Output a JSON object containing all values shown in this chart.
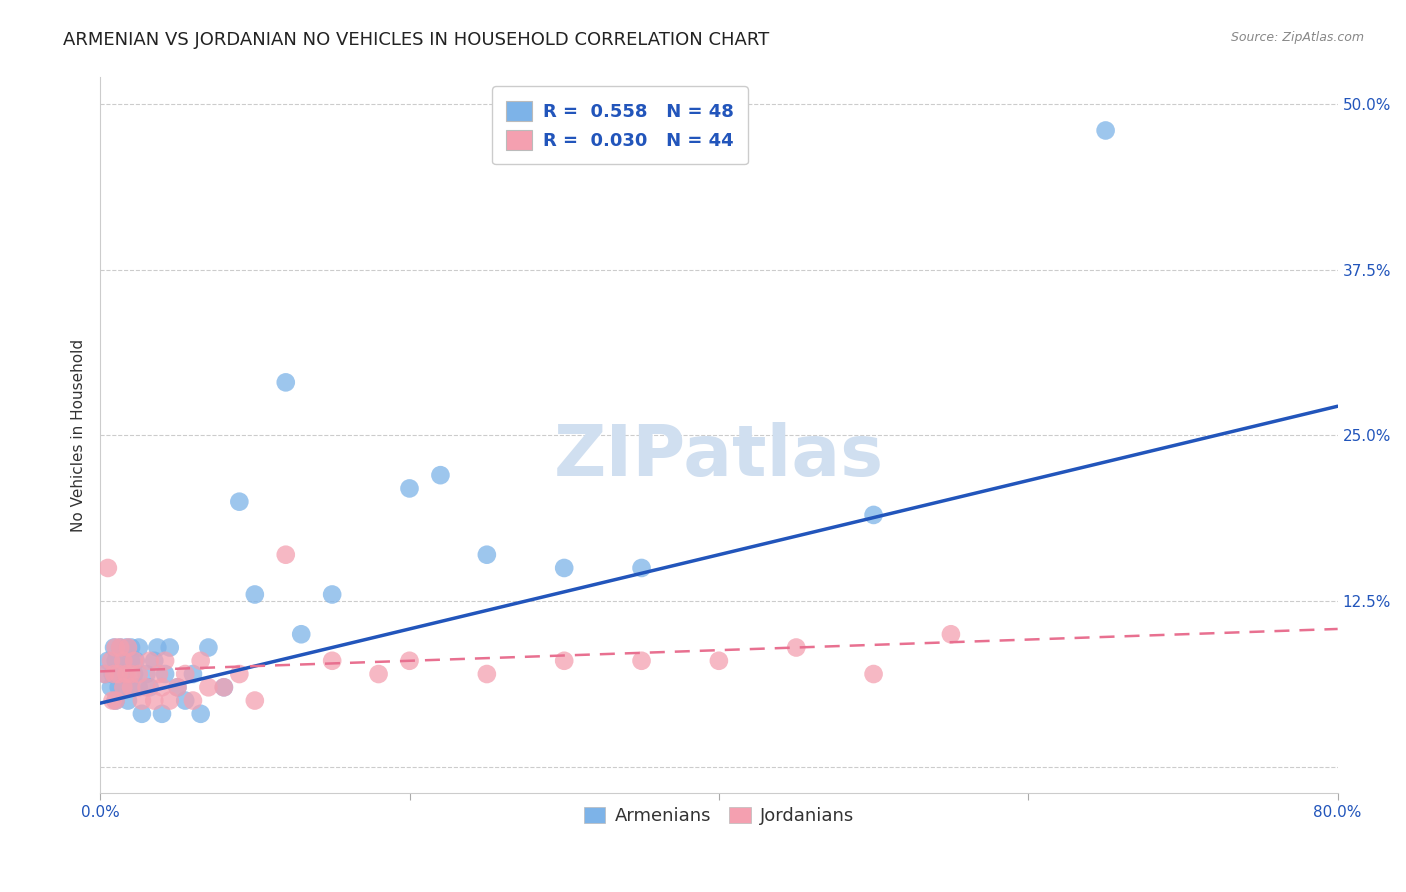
{
  "title": "ARMENIAN VS JORDANIAN NO VEHICLES IN HOUSEHOLD CORRELATION CHART",
  "source": "Source: ZipAtlas.com",
  "ylabel": "No Vehicles in Household",
  "xlim": [
    0.0,
    0.8
  ],
  "ylim": [
    -0.02,
    0.52
  ],
  "xticks": [
    0.0,
    0.2,
    0.4,
    0.6,
    0.8
  ],
  "xtick_labels": [
    "0.0%",
    "",
    "",
    "",
    "80.0%"
  ],
  "yticks": [
    0.0,
    0.125,
    0.25,
    0.375,
    0.5
  ],
  "ytick_labels": [
    "",
    "12.5%",
    "25.0%",
    "37.5%",
    "50.0%"
  ],
  "armenian_color": "#7db3e8",
  "jordanian_color": "#f4a0b0",
  "armenian_line_color": "#2255bb",
  "jordanian_line_color": "#e87090",
  "legend_armenian_label": "R =  0.558   N = 48",
  "legend_jordanian_label": "R =  0.030   N = 44",
  "bottom_legend_armenian": "Armenians",
  "bottom_legend_jordanian": "Jordanians",
  "watermark": "ZIPatlas",
  "armenian_x": [
    0.003,
    0.005,
    0.007,
    0.008,
    0.009,
    0.01,
    0.01,
    0.012,
    0.013,
    0.014,
    0.015,
    0.015,
    0.016,
    0.017,
    0.018,
    0.02,
    0.02,
    0.02,
    0.022,
    0.023,
    0.025,
    0.025,
    0.027,
    0.03,
    0.032,
    0.035,
    0.037,
    0.04,
    0.042,
    0.045,
    0.05,
    0.055,
    0.06,
    0.065,
    0.07,
    0.08,
    0.09,
    0.1,
    0.12,
    0.13,
    0.15,
    0.2,
    0.22,
    0.25,
    0.3,
    0.35,
    0.5,
    0.65
  ],
  "armenian_y": [
    0.07,
    0.08,
    0.06,
    0.07,
    0.09,
    0.05,
    0.08,
    0.06,
    0.09,
    0.07,
    0.06,
    0.08,
    0.07,
    0.09,
    0.05,
    0.06,
    0.08,
    0.09,
    0.07,
    0.08,
    0.06,
    0.09,
    0.04,
    0.07,
    0.06,
    0.08,
    0.09,
    0.04,
    0.07,
    0.09,
    0.06,
    0.05,
    0.07,
    0.04,
    0.09,
    0.06,
    0.2,
    0.13,
    0.29,
    0.1,
    0.13,
    0.21,
    0.22,
    0.16,
    0.15,
    0.15,
    0.19,
    0.48
  ],
  "jordanian_x": [
    0.003,
    0.005,
    0.007,
    0.008,
    0.009,
    0.01,
    0.01,
    0.012,
    0.013,
    0.015,
    0.015,
    0.017,
    0.018,
    0.02,
    0.02,
    0.022,
    0.025,
    0.027,
    0.03,
    0.032,
    0.035,
    0.038,
    0.04,
    0.042,
    0.045,
    0.05,
    0.055,
    0.06,
    0.065,
    0.07,
    0.08,
    0.09,
    0.1,
    0.12,
    0.15,
    0.18,
    0.2,
    0.25,
    0.3,
    0.35,
    0.4,
    0.45,
    0.5,
    0.55
  ],
  "jordanian_y": [
    0.07,
    0.15,
    0.08,
    0.05,
    0.07,
    0.05,
    0.09,
    0.07,
    0.09,
    0.06,
    0.08,
    0.07,
    0.09,
    0.06,
    0.07,
    0.08,
    0.07,
    0.05,
    0.06,
    0.08,
    0.05,
    0.07,
    0.06,
    0.08,
    0.05,
    0.06,
    0.07,
    0.05,
    0.08,
    0.06,
    0.06,
    0.07,
    0.05,
    0.16,
    0.08,
    0.07,
    0.08,
    0.07,
    0.08,
    0.08,
    0.08,
    0.09,
    0.07,
    0.1
  ],
  "grid_color": "#cccccc",
  "background_color": "#ffffff",
  "title_fontsize": 13,
  "axis_label_fontsize": 11,
  "tick_label_fontsize": 11,
  "watermark_color": "#d0dff0",
  "watermark_fontsize": 52,
  "arm_line_x0": 0.0,
  "arm_line_x1": 0.8,
  "arm_line_y0": 0.048,
  "arm_line_y1": 0.272,
  "jor_line_x0": 0.0,
  "jor_line_x1": 0.8,
  "jor_line_y0": 0.072,
  "jor_line_y1": 0.104
}
